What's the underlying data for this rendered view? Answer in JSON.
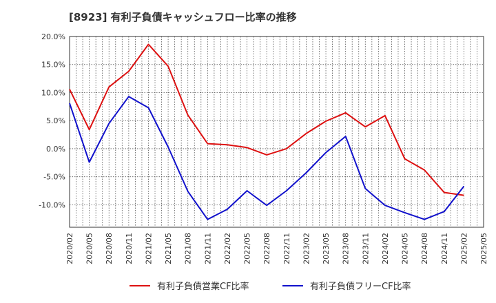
{
  "chart_data": {
    "type": "line",
    "title": "[8923]  有利子負債キャッシュフロー比率の推移",
    "xlabel": "",
    "ylabel": "",
    "ylim": [
      -14,
      20
    ],
    "yticks": [
      "20.0%",
      "15.0%",
      "10.0%",
      "5.0%",
      "0.0%",
      "-5.0%",
      "-10.0%"
    ],
    "ytick_values": [
      20,
      15,
      10,
      5,
      0,
      -5,
      -10
    ],
    "categories": [
      "2020/02",
      "2020/05",
      "2020/08",
      "2020/11",
      "2021/02",
      "2021/05",
      "2021/08",
      "2021/11",
      "2022/02",
      "2022/05",
      "2022/08",
      "2022/11",
      "2023/02",
      "2023/05",
      "2023/08",
      "2023/11",
      "2024/02",
      "2024/05",
      "2024/08",
      "2024/11",
      "2025/02",
      "2025/05"
    ],
    "grid": true,
    "legend_position": "bottom",
    "series": [
      {
        "name": "有利子負債営業CF比率",
        "color": "#dd1111",
        "values": [
          10.6,
          3.4,
          11.0,
          13.8,
          18.6,
          14.7,
          6.0,
          0.9,
          0.7,
          0.2,
          -1.1,
          0.0,
          2.7,
          4.9,
          6.4,
          3.9,
          5.9,
          -1.8,
          -3.8,
          -7.8,
          -8.3,
          null
        ]
      },
      {
        "name": "有利子負債フリーCF比率",
        "color": "#1111cc",
        "values": [
          8.1,
          -2.4,
          4.5,
          9.3,
          7.3,
          0.3,
          -7.6,
          -12.6,
          -10.8,
          -7.5,
          -10.1,
          -7.5,
          -4.3,
          -0.7,
          2.2,
          -7.1,
          -10.1,
          -11.4,
          -12.6,
          -11.2,
          -6.7,
          null
        ]
      }
    ]
  }
}
